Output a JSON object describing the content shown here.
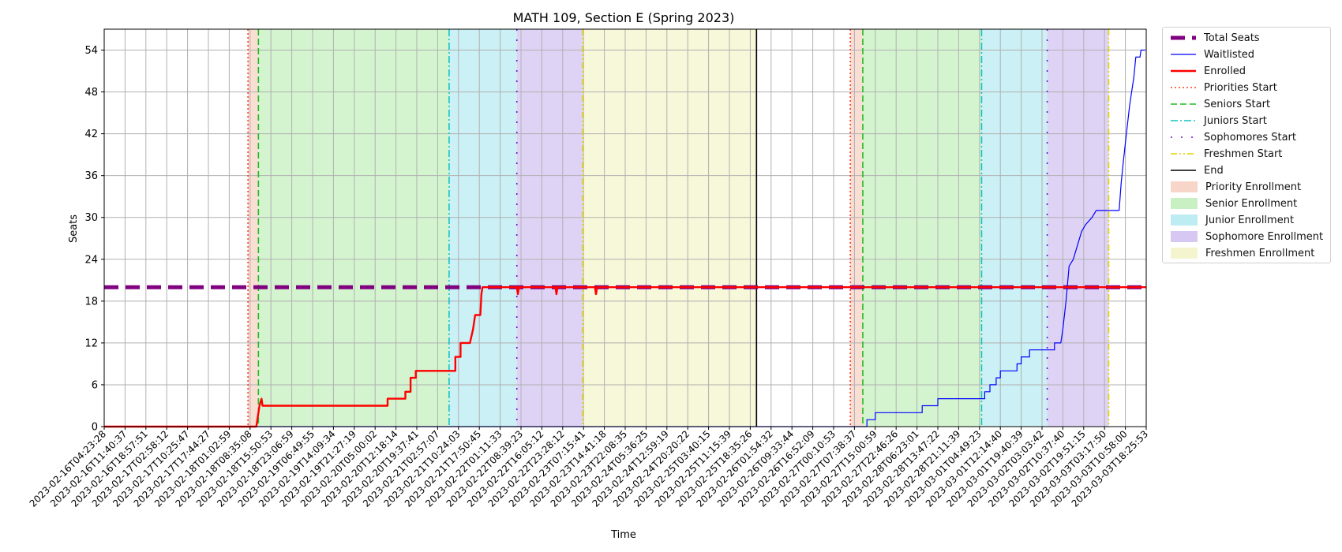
{
  "chart_data": {
    "type": "line",
    "title": "MATH 109, Section E (Spring 2023)",
    "xlabel": "Time",
    "ylabel": "Seats",
    "ylim": [
      0,
      57
    ],
    "yticks": [
      0,
      6,
      12,
      18,
      24,
      30,
      36,
      42,
      48,
      54
    ],
    "grid": true,
    "legend_position": "outside-right",
    "x_range_index": [
      0,
      100
    ],
    "xticks": [
      "2023-02-16T04:23:28",
      "2023-02-16T11:40:37",
      "2023-02-16T18:57:51",
      "2023-02-17T02:58:12",
      "2023-02-17T10:25:47",
      "2023-02-17T17:44:27",
      "2023-02-18T01:02:59",
      "2023-02-18T08:35:08",
      "2023-02-18T15:50:53",
      "2023-02-18T23:06:59",
      "2023-02-19T06:49:55",
      "2023-02-19T14:09:34",
      "2023-02-19T21:27:19",
      "2023-02-20T05:00:02",
      "2023-02-20T12:18:14",
      "2023-02-20T19:37:41",
      "2023-02-21T02:57:07",
      "2023-02-21T10:24:03",
      "2023-02-21T17:50:45",
      "2023-02-22T01:11:33",
      "2023-02-22T08:39:23",
      "2023-02-22T16:05:12",
      "2023-02-22T23:28:12",
      "2023-02-23T07:15:41",
      "2023-02-23T14:41:18",
      "2023-02-23T22:08:35",
      "2023-02-24T05:36:25",
      "2023-02-24T12:59:19",
      "2023-02-24T20:20:22",
      "2023-02-25T03:40:15",
      "2023-02-25T11:15:39",
      "2023-02-25T18:35:26",
      "2023-02-26T01:54:32",
      "2023-02-26T09:33:44",
      "2023-02-26T16:52:09",
      "2023-02-27T00:10:53",
      "2023-02-27T07:38:37",
      "2023-02-27T15:00:59",
      "2023-02-27T22:46:26",
      "2023-02-28T06:23:01",
      "2023-02-28T13:47:22",
      "2023-02-28T21:11:39",
      "2023-03-01T04:49:23",
      "2023-03-01T12:14:40",
      "2023-03-01T19:40:39",
      "2023-03-02T03:03:42",
      "2023-03-02T10:37:40",
      "2023-03-02T19:51:15",
      "2023-03-03T03:17:50",
      "2023-03-03T10:58:00",
      "2023-03-03T18:25:53"
    ],
    "series": [
      {
        "name": "Total Seats",
        "color": "#800080",
        "style": "dashed-thick",
        "points": [
          [
            0,
            20
          ],
          [
            100,
            20
          ]
        ]
      },
      {
        "name": "Waitlisted",
        "color": "#0000ff",
        "style": "solid-thin",
        "points": [
          [
            0,
            0
          ],
          [
            73.2,
            0
          ],
          [
            73.2,
            1
          ],
          [
            74,
            1
          ],
          [
            74,
            2
          ],
          [
            78.5,
            2
          ],
          [
            78.5,
            3
          ],
          [
            80,
            3
          ],
          [
            80,
            4
          ],
          [
            84.5,
            4
          ],
          [
            84.5,
            5
          ],
          [
            85,
            5
          ],
          [
            85,
            6
          ],
          [
            85.6,
            6
          ],
          [
            85.6,
            7
          ],
          [
            86,
            7
          ],
          [
            86,
            8
          ],
          [
            87.6,
            8
          ],
          [
            87.6,
            9
          ],
          [
            88,
            9
          ],
          [
            88,
            10
          ],
          [
            88.8,
            10
          ],
          [
            88.8,
            11
          ],
          [
            91.2,
            11
          ],
          [
            91.2,
            12
          ],
          [
            91.8,
            12
          ],
          [
            92,
            14
          ],
          [
            92.3,
            18
          ],
          [
            92.6,
            23
          ],
          [
            93,
            24
          ],
          [
            93.4,
            26
          ],
          [
            93.8,
            28
          ],
          [
            94.2,
            29
          ],
          [
            94.8,
            30
          ],
          [
            95.2,
            31
          ],
          [
            97.4,
            31
          ],
          [
            97.6,
            35
          ],
          [
            97.8,
            38
          ],
          [
            98.1,
            42
          ],
          [
            98.4,
            46
          ],
          [
            98.6,
            48
          ],
          [
            98.8,
            50
          ],
          [
            99,
            53
          ],
          [
            99.4,
            53
          ],
          [
            99.5,
            54
          ],
          [
            99.9,
            54
          ]
        ]
      },
      {
        "name": "Enrolled",
        "color": "#ff0000",
        "style": "solid-thick",
        "points": [
          [
            0,
            0
          ],
          [
            14.6,
            0
          ],
          [
            14.9,
            3
          ],
          [
            15.1,
            4
          ],
          [
            15.2,
            3
          ],
          [
            27.2,
            3
          ],
          [
            27.2,
            4
          ],
          [
            28.9,
            4
          ],
          [
            28.9,
            5
          ],
          [
            29.4,
            5
          ],
          [
            29.4,
            7
          ],
          [
            29.9,
            7
          ],
          [
            29.9,
            8
          ],
          [
            33.3,
            8
          ],
          [
            33.7,
            8
          ],
          [
            33.7,
            10
          ],
          [
            34.2,
            10
          ],
          [
            34.2,
            12
          ],
          [
            35.1,
            12
          ],
          [
            35.4,
            14
          ],
          [
            35.6,
            16
          ],
          [
            36.1,
            16
          ],
          [
            36.2,
            19
          ],
          [
            36.3,
            20
          ],
          [
            39.6,
            20
          ],
          [
            39.7,
            19
          ],
          [
            39.8,
            20
          ],
          [
            43.3,
            20
          ],
          [
            43.4,
            19
          ],
          [
            43.5,
            20
          ],
          [
            47.1,
            20
          ],
          [
            47.2,
            19
          ],
          [
            47.3,
            20
          ],
          [
            100,
            20
          ]
        ]
      }
    ],
    "phase_markers": [
      {
        "name": "Priorities Start",
        "x": [
          13.8,
          71.6
        ],
        "color": "#ff3b1f",
        "style": "dotted"
      },
      {
        "name": "Seniors Start",
        "x": [
          14.8,
          72.8
        ],
        "color": "#22bb22",
        "style": "dashed"
      },
      {
        "name": "Juniors Start",
        "x": [
          33.1,
          84.2
        ],
        "color": "#12c4c4",
        "style": "dashdot"
      },
      {
        "name": "Sophomores Start",
        "x": [
          39.6,
          90.5
        ],
        "color": "#6a11d4",
        "style": "loosedot"
      },
      {
        "name": "Freshmen Start",
        "x": [
          45.9,
          96.4
        ],
        "color": "#e3d200",
        "style": "dashdotdot"
      },
      {
        "name": "End",
        "x": [
          62.6
        ],
        "color": "#000000",
        "style": "solid"
      }
    ],
    "phase_regions": [
      {
        "name": "Priority Enrollment",
        "color": "#f5c8b8",
        "spans": [
          [
            13.8,
            14.8
          ],
          [
            71.6,
            72.8
          ]
        ]
      },
      {
        "name": "Senior Enrollment",
        "color": "#b8ecb0",
        "spans": [
          [
            14.8,
            33.1
          ],
          [
            72.8,
            84.2
          ]
        ]
      },
      {
        "name": "Junior Enrollment",
        "color": "#a8e6ee",
        "spans": [
          [
            33.1,
            39.6
          ],
          [
            84.2,
            90.5
          ]
        ]
      },
      {
        "name": "Sophomore Enrollment",
        "color": "#c9b6ee",
        "spans": [
          [
            39.6,
            45.9
          ],
          [
            90.5,
            96.4
          ]
        ]
      },
      {
        "name": "Freshmen Enrollment",
        "color": "#f1f2bf",
        "spans": [
          [
            45.9,
            62.6
          ]
        ]
      }
    ]
  },
  "legend": [
    {
      "label": "Total Seats",
      "kind": "line",
      "color": "#800080",
      "style": "dashed-thick"
    },
    {
      "label": "Waitlisted",
      "kind": "line",
      "color": "#0000ff",
      "style": "solid-thin"
    },
    {
      "label": "Enrolled",
      "kind": "line",
      "color": "#ff0000",
      "style": "solid-thick"
    },
    {
      "label": "Priorities Start",
      "kind": "line",
      "color": "#ff3b1f",
      "style": "dotted"
    },
    {
      "label": "Seniors Start",
      "kind": "line",
      "color": "#22bb22",
      "style": "dashed"
    },
    {
      "label": "Juniors Start",
      "kind": "line",
      "color": "#12c4c4",
      "style": "dashdot"
    },
    {
      "label": "Sophomores Start",
      "kind": "line",
      "color": "#6a11d4",
      "style": "loosedot"
    },
    {
      "label": "Freshmen Start",
      "kind": "line",
      "color": "#e3d200",
      "style": "dashdotdot"
    },
    {
      "label": "End",
      "kind": "line",
      "color": "#000000",
      "style": "solid"
    },
    {
      "label": "Priority Enrollment",
      "kind": "patch",
      "color": "#f5c8b8"
    },
    {
      "label": "Senior Enrollment",
      "kind": "patch",
      "color": "#b8ecb0"
    },
    {
      "label": "Junior Enrollment",
      "kind": "patch",
      "color": "#a8e6ee"
    },
    {
      "label": "Sophomore Enrollment",
      "kind": "patch",
      "color": "#c9b6ee"
    },
    {
      "label": "Freshmen Enrollment",
      "kind": "patch",
      "color": "#f1f2bf"
    }
  ]
}
